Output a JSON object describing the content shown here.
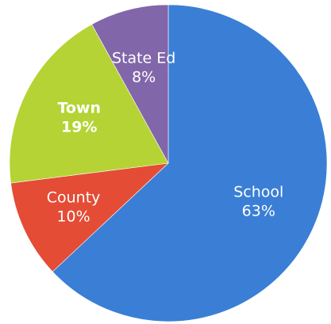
{
  "chart_data": {
    "type": "pie",
    "slices": [
      {
        "label": "School",
        "value": 63,
        "value_label": "63%",
        "color": "#3a7fd5",
        "bold": false
      },
      {
        "label": "County",
        "value": 10,
        "value_label": "10%",
        "color": "#e44c35",
        "bold": false
      },
      {
        "label": "Town",
        "value": 19,
        "value_label": "19%",
        "color": "#b5d334",
        "bold": true
      },
      {
        "label": "State Ed",
        "value": 8,
        "value_label": "8%",
        "color": "#8266aa",
        "bold": false
      }
    ],
    "start_angle_deg": 0,
    "direction": "clockwise",
    "legend": "none"
  }
}
